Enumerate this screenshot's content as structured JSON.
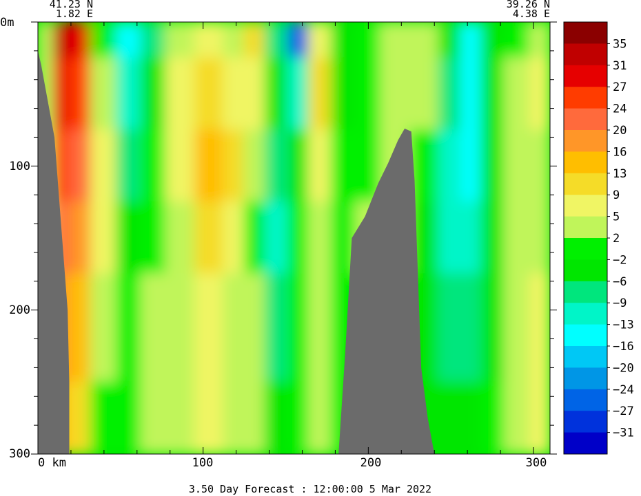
{
  "caption": "3.50 Day Forecast : 12:00:00   5 Mar 2022",
  "start_point": {
    "lat": "41.23 N",
    "lon": "1.82 E"
  },
  "end_point": {
    "lat": "39.26 N",
    "lon": "4.38 E"
  },
  "x_axis": {
    "unit_label": "0 km",
    "tick_labels": [
      "100",
      "200",
      "300"
    ]
  },
  "y_axis": {
    "top_label": "0m",
    "tick_labels": [
      "100",
      "200",
      "300"
    ]
  },
  "chart_data": {
    "type": "heatmap",
    "title": "",
    "xlabel": "km",
    "ylabel": "m",
    "xlim": [
      0,
      310
    ],
    "ylim": [
      300,
      0
    ],
    "x_ticks": [
      0,
      100,
      200,
      300
    ],
    "y_ticks": [
      0,
      100,
      200,
      300
    ],
    "colorbar": {
      "labels": [
        "35",
        "31",
        "27",
        "24",
        "20",
        "16",
        "13",
        "9",
        "5",
        "2",
        "−2",
        "−6",
        "−9",
        "−13",
        "−16",
        "−20",
        "−24",
        "−27",
        "−31"
      ],
      "colors": [
        "#8b0000",
        "#c00000",
        "#e60000",
        "#ff3c00",
        "#ff6a3c",
        "#ff9628",
        "#ffbe00",
        "#f5dc28",
        "#f0f564",
        "#c0f55a",
        "#00f000",
        "#00e600",
        "#00e67d",
        "#00f5c8",
        "#00ffff",
        "#00c8f5",
        "#0096e6",
        "#0064e6",
        "#0032dc",
        "#0000c8"
      ]
    },
    "land_mask_color": "#6b6b6b",
    "columns": [
      {
        "x": 5,
        "values": [
          3,
          4,
          5,
          6,
          4,
          3
        ]
      },
      {
        "x": 14,
        "values": [
          35,
          31,
          27,
          24,
          20,
          16
        ]
      },
      {
        "x": 24,
        "values": [
          28,
          27,
          24,
          20,
          16,
          13
        ]
      },
      {
        "x": 40,
        "values": [
          2,
          5,
          9,
          9,
          5,
          2
        ]
      },
      {
        "x": 55,
        "values": [
          -13,
          -9,
          -6,
          -2,
          2,
          2
        ]
      },
      {
        "x": 70,
        "values": [
          -6,
          -2,
          2,
          2,
          5,
          5
        ]
      },
      {
        "x": 85,
        "values": [
          5,
          9,
          9,
          5,
          5,
          5
        ]
      },
      {
        "x": 105,
        "values": [
          9,
          13,
          16,
          13,
          9,
          9
        ]
      },
      {
        "x": 120,
        "values": [
          5,
          9,
          13,
          9,
          5,
          5
        ]
      },
      {
        "x": 130,
        "values": [
          13,
          9,
          5,
          2,
          5,
          5
        ]
      },
      {
        "x": 145,
        "values": [
          -6,
          -2,
          -6,
          -9,
          -6,
          -2
        ]
      },
      {
        "x": 158,
        "values": [
          -24,
          -9,
          -2,
          2,
          2,
          2
        ]
      },
      {
        "x": 170,
        "values": [
          9,
          13,
          9,
          5,
          5,
          5
        ]
      },
      {
        "x": 185,
        "values": [
          -2,
          -2,
          2,
          2,
          2,
          2
        ]
      },
      {
        "x": 200,
        "values": [
          2,
          2,
          2,
          5,
          2,
          2
        ]
      },
      {
        "x": 215,
        "values": [
          5,
          5,
          5,
          5,
          2,
          2
        ]
      },
      {
        "x": 235,
        "values": [
          5,
          5,
          2,
          -2,
          -2,
          -2
        ]
      },
      {
        "x": 250,
        "values": [
          -2,
          -6,
          -9,
          -9,
          -6,
          -2
        ]
      },
      {
        "x": 262,
        "values": [
          -13,
          -13,
          -13,
          -9,
          -6,
          -2
        ]
      },
      {
        "x": 275,
        "values": [
          -2,
          -2,
          -2,
          -2,
          -2,
          2
        ]
      },
      {
        "x": 290,
        "values": [
          2,
          5,
          5,
          5,
          5,
          5
        ]
      },
      {
        "x": 305,
        "values": [
          5,
          9,
          5,
          5,
          9,
          9
        ]
      }
    ],
    "depths": [
      0,
      50,
      100,
      150,
      200,
      300
    ],
    "land": [
      {
        "name": "coastal-slope",
        "x": [
          0,
          2,
          10,
          18,
          19,
          19,
          0
        ],
        "bottom": [
          20,
          30,
          80,
          200,
          250,
          300,
          300
        ]
      },
      {
        "name": "seamount",
        "x": [
          182,
          186,
          190,
          198,
          206,
          212,
          218,
          222,
          226,
          228,
          232,
          236,
          240
        ],
        "bottom": [
          300,
          230,
          150,
          135,
          112,
          98,
          82,
          74,
          76,
          110,
          240,
          275,
          300
        ]
      }
    ]
  }
}
